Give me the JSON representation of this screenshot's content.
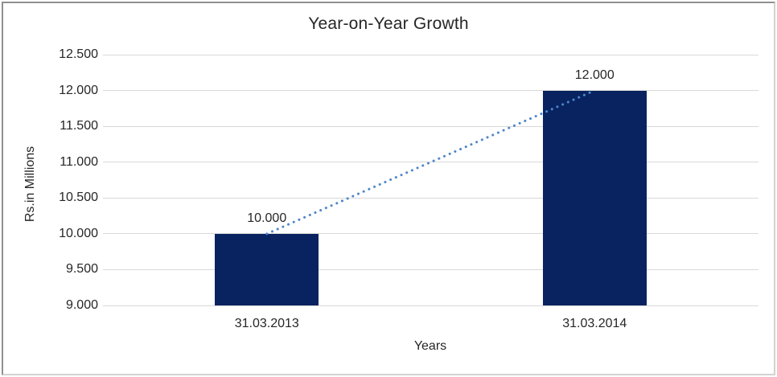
{
  "chart_data": {
    "type": "bar",
    "title": "Year-on-Year Growth",
    "xlabel": "Years",
    "ylabel": "Rs.in Millions",
    "categories": [
      "31.03.2013",
      "31.03.2014"
    ],
    "series": [
      {
        "name": "Year-on-Year Growth",
        "values": [
          10000,
          12000
        ]
      }
    ],
    "value_labels": [
      "10.000",
      "12.000"
    ],
    "ylim": [
      9000,
      12500
    ],
    "ytick_step": 500,
    "ytick_labels": [
      "9.000",
      "9.500",
      "10.000",
      "10.500",
      "11.000",
      "11.500",
      "12.000",
      "12.500"
    ],
    "grid": "horizontal",
    "legend": "none",
    "colors": {
      "bar": "#082360",
      "trendline": "#4f86ca",
      "gridline": "#d9d9d9",
      "text": "#262626",
      "background": "#ffffff"
    },
    "trendline": {
      "style": "dotted",
      "connects": "bar tops",
      "from_value": 10000,
      "to_value": 12000
    }
  }
}
